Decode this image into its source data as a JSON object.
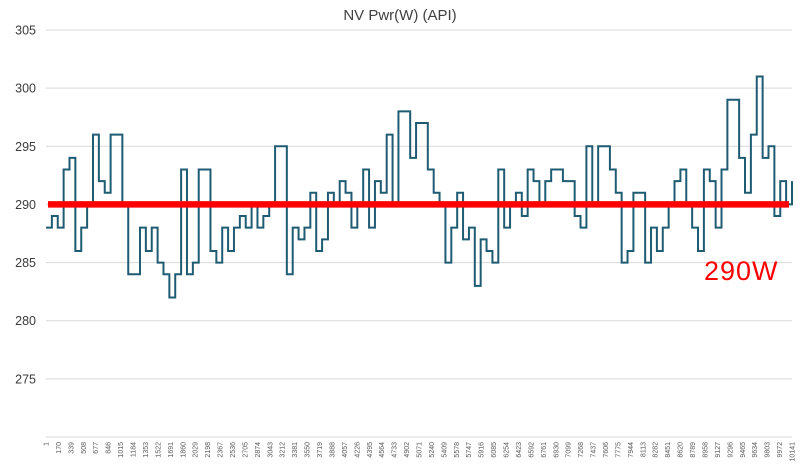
{
  "chart_data": {
    "type": "line",
    "line_style": "step",
    "title": "NV Pwr(W) (API)",
    "xlabel": "",
    "ylabel": "",
    "ylim": [
      270,
      305
    ],
    "yticks": [
      275,
      280,
      285,
      290,
      295,
      300,
      305
    ],
    "grid": true,
    "legend": "none",
    "x_tick_labels": [
      "1",
      "170",
      "339",
      "508",
      "677",
      "846",
      "1015",
      "1184",
      "1353",
      "1522",
      "1691",
      "1860",
      "2029",
      "2198",
      "2367",
      "2536",
      "2705",
      "2874",
      "3043",
      "3212",
      "3381",
      "3550",
      "3719",
      "3888",
      "4057",
      "4226",
      "4395",
      "4564",
      "4733",
      "4902",
      "5071",
      "5240",
      "5409",
      "5578",
      "5747",
      "5916",
      "6085",
      "6254",
      "6423",
      "6592",
      "6761",
      "6930",
      "7099",
      "7268",
      "7437",
      "7606",
      "7775",
      "7944",
      "8113",
      "8282",
      "8451",
      "8620",
      "8789",
      "8958",
      "9127",
      "9296",
      "9465",
      "9634",
      "9803",
      "9972",
      "10141"
    ],
    "series": [
      {
        "name": "NV Pwr(W) (API)",
        "color": "#1f5c73",
        "values": [
          288,
          289,
          288,
          293,
          294,
          286,
          288,
          290,
          296,
          292,
          291,
          296,
          296,
          290,
          284,
          284,
          288,
          286,
          288,
          285,
          284,
          282,
          284,
          293,
          284,
          285,
          293,
          293,
          286,
          285,
          288,
          286,
          288,
          289,
          288,
          290,
          288,
          289,
          290,
          295,
          295,
          284,
          288,
          287,
          288,
          291,
          286,
          287,
          291,
          290,
          292,
          291,
          288,
          290,
          293,
          288,
          292,
          291,
          296,
          290,
          298,
          298,
          294,
          297,
          297,
          293,
          291,
          290,
          285,
          288,
          291,
          287,
          288,
          283,
          287,
          286,
          285,
          293,
          288,
          290,
          291,
          289,
          293,
          292,
          290,
          292,
          293,
          293,
          292,
          292,
          289,
          288,
          295,
          290,
          295,
          295,
          293,
          291,
          285,
          286,
          291,
          291,
          285,
          288,
          286,
          288,
          290,
          292,
          293,
          290,
          288,
          286,
          293,
          292,
          288,
          293,
          299,
          299,
          294,
          291,
          296,
          301,
          294,
          295,
          289,
          292,
          290,
          292
        ]
      }
    ],
    "reference_line": {
      "value": 290,
      "label": "290W",
      "color": "#ff0000"
    }
  },
  "colors": {
    "gridline": "#d9d9d9",
    "title_text": "#404040",
    "axis_text": "#595959"
  }
}
